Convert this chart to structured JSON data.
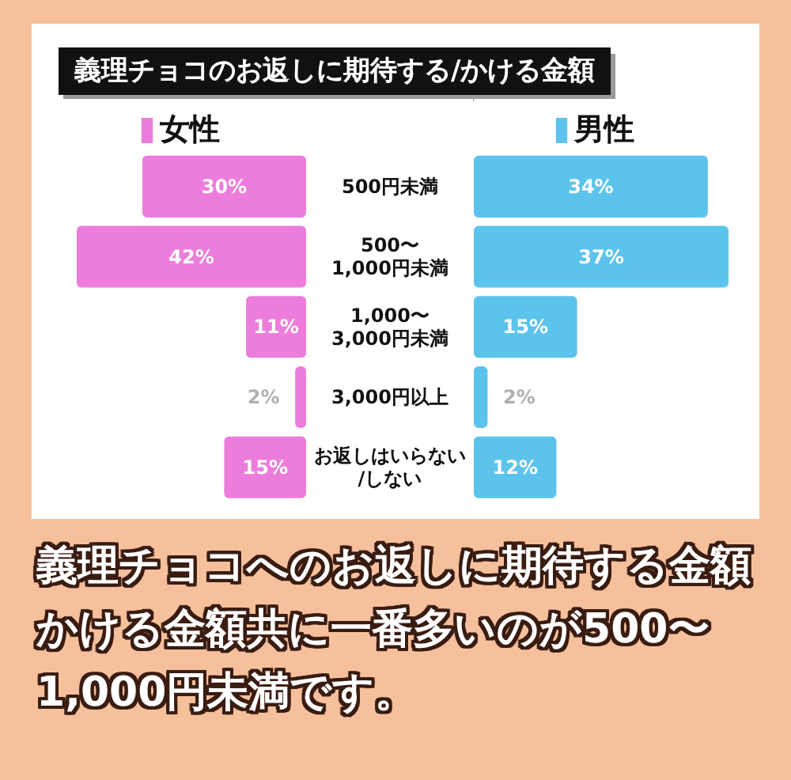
{
  "chart_data": [
    {
      "type": "bar",
      "orientation": "horizontal",
      "title": "義理チョコのお返しに期待する/かける金額",
      "categories": [
        "500円未満",
        "500〜\n1,000円未満",
        "1,000〜\n3,000円未満",
        "3,000円以上",
        "お返しはいらない\n/しない"
      ],
      "series": [
        {
          "name": "女性",
          "color": "#ed7ddc",
          "values": [
            30,
            42,
            11,
            2,
            15
          ],
          "value_labels": [
            "30%",
            "42%",
            "11%",
            "2%",
            "15%"
          ]
        }
      ],
      "legend": "top left",
      "tick_labels": "y",
      "annotations": [
        "義理チョコへのお返しに期待する金額かける金額共に一番多いのが500〜1,000円未満です。"
      ]
    },
    {
      "type": "bar",
      "orientation": "horizontal",
      "categories": [
        null,
        null,
        null,
        null,
        null
      ],
      "series": [
        {
          "name": "男性",
          "color": "#5cc4ec",
          "values": [
            34,
            37,
            15,
            2,
            12
          ],
          "value_labels": [
            "34%",
            "37%",
            "15%",
            "2%",
            "12%"
          ]
        }
      ],
      "legend": "top right",
      "tick_labels": false
    }
  ]
}
